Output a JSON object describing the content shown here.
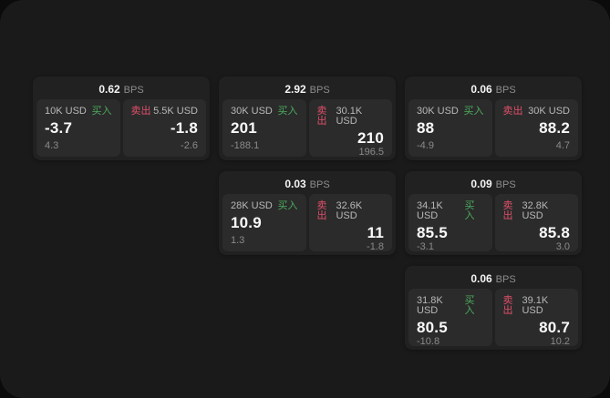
{
  "labels": {
    "bps_unit": "BPS",
    "buy": "买入",
    "sell": "卖出"
  },
  "colors": {
    "buy_green": "#4bab5d",
    "sell_red": "#e0506a",
    "surface": "#1a1a1a",
    "card": "#212121",
    "pane": "#2b2b2b"
  },
  "cards": [
    {
      "bps": "0.62",
      "buy": {
        "amount": "10K USD",
        "price": "-3.7",
        "delta": "4.3"
      },
      "sell": {
        "amount": "5.5K USD",
        "price": "-1.8",
        "delta": "-2.6"
      }
    },
    {
      "bps": "2.92",
      "buy": {
        "amount": "30K USD",
        "price": "201",
        "delta": "-188.1"
      },
      "sell": {
        "amount": "30.1K USD",
        "price": "210",
        "delta": "196.5"
      }
    },
    {
      "bps": "0.06",
      "buy": {
        "amount": "30K USD",
        "price": "88",
        "delta": "-4.9"
      },
      "sell": {
        "amount": "30K USD",
        "price": "88.2",
        "delta": "4.7"
      }
    },
    {
      "bps": "0.03",
      "buy": {
        "amount": "28K USD",
        "price": "10.9",
        "delta": "1.3"
      },
      "sell": {
        "amount": "32.6K USD",
        "price": "11",
        "delta": "-1.8"
      }
    },
    {
      "bps": "0.09",
      "buy": {
        "amount": "34.1K USD",
        "price": "85.5",
        "delta": "-3.1"
      },
      "sell": {
        "amount": "32.8K USD",
        "price": "85.8",
        "delta": "3.0"
      }
    },
    {
      "bps": "0.06",
      "buy": {
        "amount": "31.8K USD",
        "price": "80.5",
        "delta": "-10.8"
      },
      "sell": {
        "amount": "39.1K USD",
        "price": "80.7",
        "delta": "10.2"
      }
    }
  ]
}
